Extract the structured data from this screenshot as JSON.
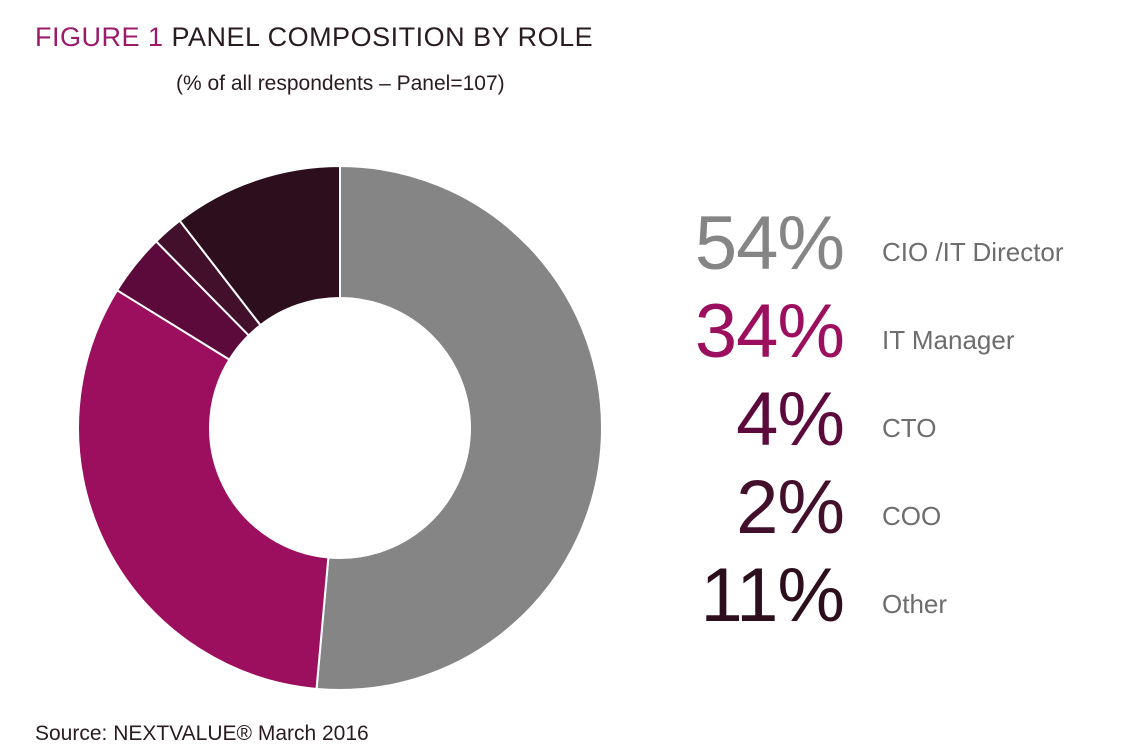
{
  "figure": {
    "label": "FIGURE 1",
    "title": "PANEL COMPOSITION BY ROLE",
    "subtitle": "(% of all respondents – Panel=107)"
  },
  "source": "Source: NEXTVALUE® March 2016",
  "chart_data": {
    "type": "pie",
    "variant": "donut",
    "series": [
      {
        "name": "CIO /IT Director",
        "value": 54,
        "display": "54%",
        "color": "#858585"
      },
      {
        "name": "IT Manager",
        "value": 34,
        "display": "34%",
        "color": "#9b0f5e"
      },
      {
        "name": "CTO",
        "value": 4,
        "display": "4%",
        "color": "#5c0a3c"
      },
      {
        "name": "COO",
        "value": 2,
        "display": "2%",
        "color": "#43102c"
      },
      {
        "name": "Other",
        "value": 11,
        "display": "11%",
        "color": "#2c0e1c"
      }
    ],
    "legend_placement": "right"
  }
}
